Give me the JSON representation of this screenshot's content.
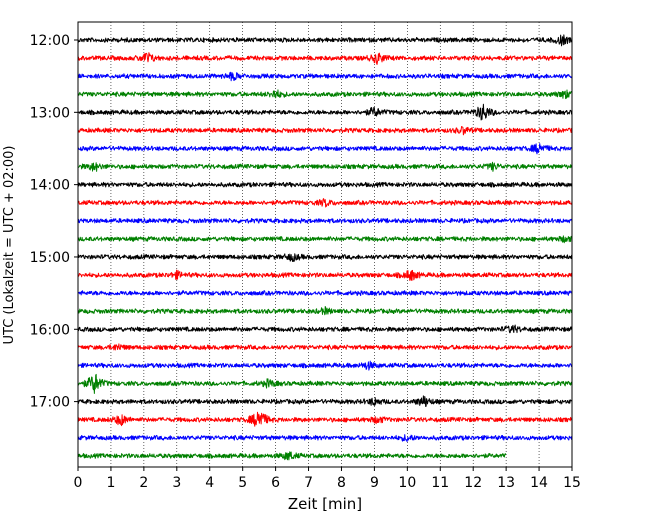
{
  "chart_data": {
    "type": "line",
    "title": "",
    "xlabel": "Zeit  [min]",
    "ylabel": "UTC (Lokalzeit = UTC + 02:00)",
    "xlim": [
      0,
      15
    ],
    "x_ticks": [
      0,
      1,
      2,
      3,
      4,
      5,
      6,
      7,
      8,
      9,
      10,
      11,
      12,
      13,
      14,
      15
    ],
    "y_tick_labels": [
      "12:00",
      "13:00",
      "14:00",
      "15:00",
      "16:00",
      "17:00"
    ],
    "row_interval_min": 15,
    "start_time": "12:00",
    "grid": "vertical dotted at each minute",
    "colors": [
      "#000000",
      "#ff0000",
      "#0000ff",
      "#008000"
    ],
    "rows": [
      {
        "start": "12:00",
        "color": "#000000",
        "events": [
          {
            "t": 14.7,
            "amp": 0.5
          }
        ]
      },
      {
        "start": "12:15",
        "color": "#ff0000",
        "events": [
          {
            "t": 2.1,
            "amp": 0.6
          },
          {
            "t": 9.1,
            "amp": 0.6
          }
        ]
      },
      {
        "start": "12:30",
        "color": "#0000ff",
        "events": [
          {
            "t": 4.7,
            "amp": 0.4
          }
        ]
      },
      {
        "start": "12:45",
        "color": "#008000",
        "events": [
          {
            "t": 6.0,
            "amp": 0.45
          },
          {
            "t": 14.8,
            "amp": 0.4
          }
        ]
      },
      {
        "start": "13:00",
        "color": "#000000",
        "events": [
          {
            "t": 12.3,
            "amp": 1.0
          },
          {
            "t": 9.0,
            "amp": 0.5
          }
        ]
      },
      {
        "start": "13:15",
        "color": "#ff0000",
        "events": [
          {
            "t": 11.7,
            "amp": 0.35
          }
        ]
      },
      {
        "start": "13:30",
        "color": "#0000ff",
        "events": [
          {
            "t": 14.0,
            "amp": 0.6
          }
        ]
      },
      {
        "start": "13:45",
        "color": "#008000",
        "events": [
          {
            "t": 0.5,
            "amp": 0.45
          },
          {
            "t": 12.6,
            "amp": 0.35
          }
        ]
      },
      {
        "start": "14:00",
        "color": "#000000",
        "events": []
      },
      {
        "start": "14:15",
        "color": "#ff0000",
        "events": [
          {
            "t": 7.5,
            "amp": 0.35
          }
        ]
      },
      {
        "start": "14:30",
        "color": "#0000ff",
        "events": []
      },
      {
        "start": "14:45",
        "color": "#008000",
        "events": [
          {
            "t": 14.8,
            "amp": 0.3
          }
        ]
      },
      {
        "start": "15:00",
        "color": "#000000",
        "events": [
          {
            "t": 6.5,
            "amp": 0.4
          }
        ]
      },
      {
        "start": "15:15",
        "color": "#ff0000",
        "events": [
          {
            "t": 10.1,
            "amp": 0.6
          },
          {
            "t": 3.0,
            "amp": 0.35
          }
        ]
      },
      {
        "start": "15:30",
        "color": "#0000ff",
        "events": []
      },
      {
        "start": "15:45",
        "color": "#008000",
        "events": [
          {
            "t": 7.5,
            "amp": 0.3
          }
        ]
      },
      {
        "start": "16:00",
        "color": "#000000",
        "events": [
          {
            "t": 13.2,
            "amp": 0.4
          }
        ]
      },
      {
        "start": "16:15",
        "color": "#ff0000",
        "events": [
          {
            "t": 1.2,
            "amp": 0.3
          }
        ]
      },
      {
        "start": "16:30",
        "color": "#0000ff",
        "events": [
          {
            "t": 8.8,
            "amp": 0.4
          }
        ]
      },
      {
        "start": "16:45",
        "color": "#008000",
        "events": [
          {
            "t": 0.5,
            "amp": 1.2
          },
          {
            "t": 5.8,
            "amp": 0.4
          }
        ]
      },
      {
        "start": "17:00",
        "color": "#000000",
        "events": [
          {
            "t": 10.5,
            "amp": 0.6
          },
          {
            "t": 9.0,
            "amp": 0.4
          }
        ]
      },
      {
        "start": "17:15",
        "color": "#ff0000",
        "events": [
          {
            "t": 5.5,
            "amp": 1.3
          },
          {
            "t": 1.3,
            "amp": 0.6
          },
          {
            "t": 9.1,
            "amp": 0.35
          }
        ]
      },
      {
        "start": "17:30",
        "color": "#0000ff",
        "events": [
          {
            "t": 10.0,
            "amp": 0.3
          }
        ]
      },
      {
        "start": "17:45",
        "color": "#008000",
        "end_t": 13.0,
        "events": [
          {
            "t": 6.4,
            "amp": 0.45
          }
        ]
      }
    ]
  }
}
